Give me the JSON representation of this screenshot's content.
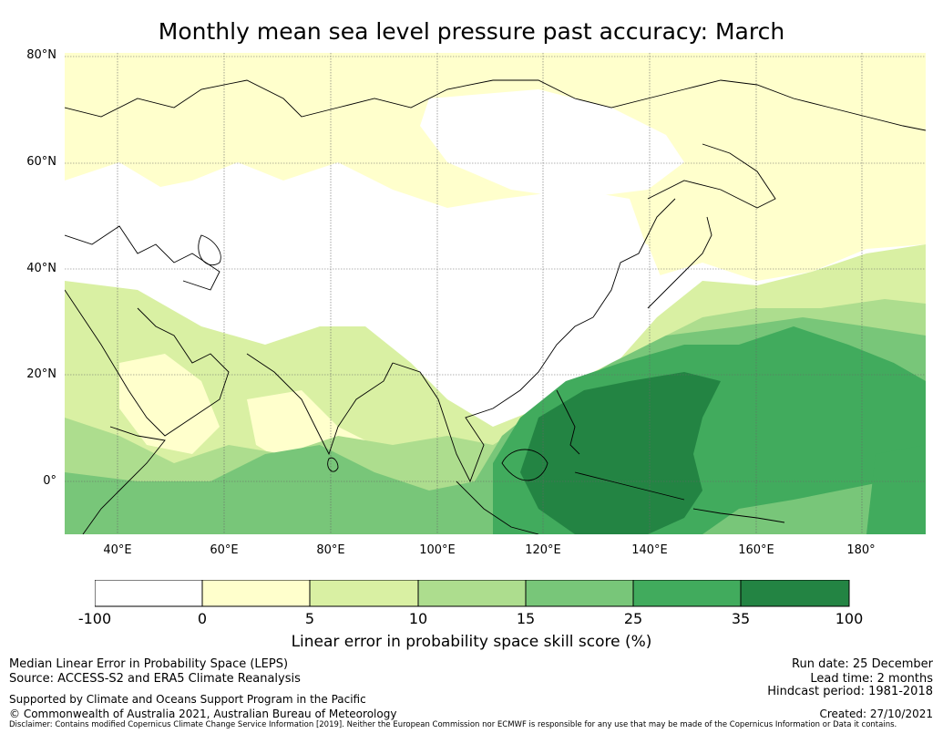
{
  "title": "Monthly mean sea level pressure past accuracy: March",
  "map": {
    "lat_labels": [
      "80°N",
      "60°N",
      "40°N",
      "20°N",
      "0°"
    ],
    "lon_labels": [
      "40°E",
      "60°E",
      "80°E",
      "100°E",
      "120°E",
      "140°E",
      "160°E",
      "180°"
    ],
    "extent": {
      "lon_min": 30,
      "lon_max": 192,
      "lat_min": -10,
      "lat_max": 81
    }
  },
  "colorbar": {
    "bin_edges": [
      -100,
      0,
      5,
      10,
      15,
      25,
      35,
      100
    ],
    "tick_labels": [
      "-100",
      "0",
      "5",
      "10",
      "15",
      "25",
      "35",
      "100"
    ],
    "colors": [
      "#ffffff",
      "#ffffcc",
      "#d9f0a3",
      "#addd8e",
      "#78c679",
      "#41ab5d",
      "#238443"
    ],
    "label": "Linear error in probability space skill score (%)"
  },
  "footer": {
    "left": [
      "Median Linear Error in Probability Space (LEPS)",
      "Source: ACCESS-S2 and ERA5 Climate Reanalysis",
      "Supported by Climate and Oceans Support Program in the Pacific",
      "© Commonwealth of Australia 2021, Australian Bureau of Meteorology"
    ],
    "right": [
      "Run date: 25 December",
      "Lead time: 2 months",
      "Hindcast period: 1981-2018",
      "Created: 27/10/2021"
    ],
    "disclaimer": "Disclaimer: Contains modified Copernicus Climate Change Service Information [2019]. Neither the European Commission nor ECMWF is responsible for any use that may be made of the Copernicus Information or Data it contains."
  }
}
